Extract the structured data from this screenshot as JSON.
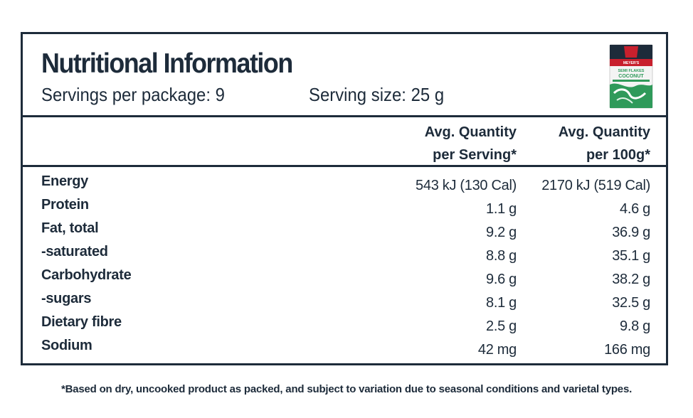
{
  "panel": {
    "title": "Nutritional Information",
    "servings_per_package": "Servings per package: 9",
    "serving_size": "Serving size: 25 g",
    "columns": {
      "per_serving": [
        "Avg. Quantity",
        "per Serving*"
      ],
      "per_100g": [
        "Avg. Quantity",
        "per 100g*"
      ]
    },
    "rows": [
      {
        "name": "Energy",
        "per_serving": "543 kJ (130 Cal)",
        "per_100g": "2170 kJ (519 Cal)"
      },
      {
        "name": "Protein",
        "per_serving": "1.1 g",
        "per_100g": "4.6 g"
      },
      {
        "name": "Fat, total",
        "per_serving": "9.2 g",
        "per_100g": "36.9 g"
      },
      {
        "name": "-saturated",
        "per_serving": "8.8 g",
        "per_100g": "35.1 g"
      },
      {
        "name": "Carbohydrate",
        "per_serving": "9.6 g",
        "per_100g": "38.2 g"
      },
      {
        "name": "-sugars",
        "per_serving": "8.1 g",
        "per_100g": "32.5 g"
      },
      {
        "name": "Dietary fibre",
        "per_serving": "2.5 g",
        "per_100g": "9.8 g"
      },
      {
        "name": "Sodium",
        "per_serving": "42 mg",
        "per_100g": "166 mg"
      }
    ],
    "product_image": {
      "icon": "coconut-flakes-package-icon",
      "brand_label": "MEYER'S",
      "product_label_line1": "SEMI FLAKES",
      "product_label_line2": "COCONUT"
    }
  },
  "footnote": "*Based on dry, uncooked product as packed, and subject to variation due to seasonal conditions and varietal types.",
  "colors": {
    "ink": "#1d2b3a",
    "pack_green": "#2f9a5a",
    "pack_red": "#c8202d"
  }
}
